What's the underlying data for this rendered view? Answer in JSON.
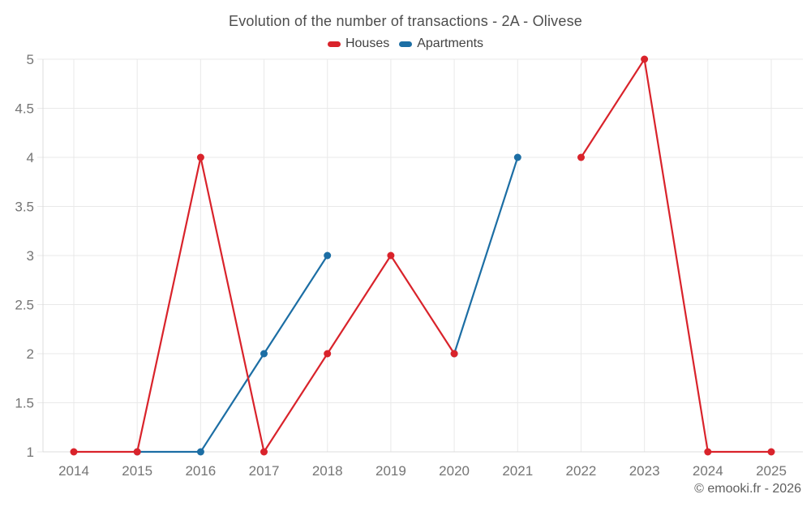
{
  "title": "Evolution of the number of transactions - 2A - Olivese",
  "watermark": "© emooki.fr - 2026",
  "colors": {
    "houses": "#d9232b",
    "apartments": "#1c6ea4",
    "grid": "#e9e9e9",
    "axis": "#dcdcdc",
    "tick_label": "#757575",
    "title_text": "#4d4d4d",
    "legend_text": "#424242",
    "watermark_text": "#5f5f5f",
    "background": "#ffffff"
  },
  "legend": {
    "items": [
      {
        "label": "Houses",
        "color_key": "houses"
      },
      {
        "label": "Apartments",
        "color_key": "apartments"
      }
    ]
  },
  "chart_data": {
    "type": "line",
    "title": "Evolution of the number of transactions - 2A - Olivese",
    "categories": [
      "2014",
      "2015",
      "2016",
      "2017",
      "2018",
      "2019",
      "2020",
      "2021",
      "2022",
      "2023",
      "2024",
      "2025"
    ],
    "series": [
      {
        "name": "Houses",
        "color": "#d9232b",
        "values": [
          1,
          1,
          4,
          1,
          2,
          3,
          2,
          null,
          4,
          5,
          1,
          1
        ]
      },
      {
        "name": "Apartments",
        "color": "#1c6ea4",
        "values": [
          null,
          1,
          1,
          2,
          3,
          null,
          2,
          4,
          null,
          null,
          null,
          null
        ]
      }
    ],
    "xlabel": "",
    "ylabel": "",
    "ylim": [
      1,
      5
    ],
    "y_ticks": [
      1,
      1.5,
      2,
      2.5,
      3,
      3.5,
      4,
      4.5,
      5
    ],
    "grid": true,
    "legend_position": "top",
    "marker": "circle",
    "note_gaps": "null values are rendered as gaps in the line"
  }
}
